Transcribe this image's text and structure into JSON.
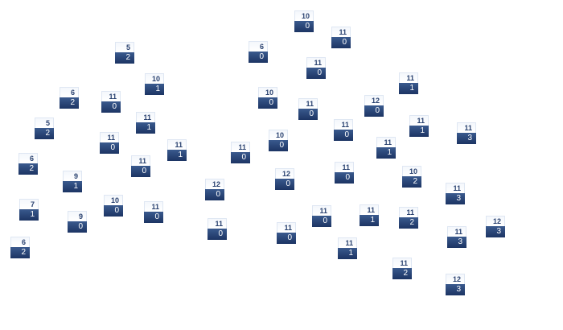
{
  "colors": {
    "header_text": "#2a4270",
    "value_bg": "#1c3463",
    "value_text": "#ffffff"
  },
  "nodes": [
    {
      "top": "5",
      "bottom": "2"
    },
    {
      "top": "10",
      "bottom": "1"
    },
    {
      "top": "6",
      "bottom": "2"
    },
    {
      "top": "11",
      "bottom": "0"
    },
    {
      "top": "5",
      "bottom": "2"
    },
    {
      "top": "11",
      "bottom": "1"
    },
    {
      "top": "11",
      "bottom": "0"
    },
    {
      "top": "11",
      "bottom": "1"
    },
    {
      "top": "11",
      "bottom": "0"
    },
    {
      "top": "6",
      "bottom": "2"
    },
    {
      "top": "9",
      "bottom": "1"
    },
    {
      "top": "7",
      "bottom": "1"
    },
    {
      "top": "10",
      "bottom": "0"
    },
    {
      "top": "11",
      "bottom": "0"
    },
    {
      "top": "9",
      "bottom": "0"
    },
    {
      "top": "6",
      "bottom": "2"
    },
    {
      "top": "10",
      "bottom": "0"
    },
    {
      "top": "11",
      "bottom": "0"
    },
    {
      "top": "6",
      "bottom": "0"
    },
    {
      "top": "11",
      "bottom": "0"
    },
    {
      "top": "10",
      "bottom": "0"
    },
    {
      "top": "11",
      "bottom": "0"
    },
    {
      "top": "12",
      "bottom": "0"
    },
    {
      "top": "11",
      "bottom": "0"
    },
    {
      "top": "10",
      "bottom": "0"
    },
    {
      "top": "11",
      "bottom": "0"
    },
    {
      "top": "12",
      "bottom": "0"
    },
    {
      "top": "11",
      "bottom": "0"
    },
    {
      "top": "12",
      "bottom": "0"
    },
    {
      "top": "11",
      "bottom": "0"
    },
    {
      "top": "11",
      "bottom": "1"
    },
    {
      "top": "11",
      "bottom": "0"
    },
    {
      "top": "11",
      "bottom": "0"
    },
    {
      "top": "11",
      "bottom": "1"
    },
    {
      "top": "11",
      "bottom": "1"
    },
    {
      "top": "11",
      "bottom": "3"
    },
    {
      "top": "11",
      "bottom": "1"
    },
    {
      "top": "10",
      "bottom": "2"
    },
    {
      "top": "11",
      "bottom": "3"
    },
    {
      "top": "11",
      "bottom": "2"
    },
    {
      "top": "12",
      "bottom": "3"
    },
    {
      "top": "11",
      "bottom": "3"
    },
    {
      "top": "11",
      "bottom": "1"
    },
    {
      "top": "11",
      "bottom": "2"
    },
    {
      "top": "12",
      "bottom": "3"
    }
  ]
}
